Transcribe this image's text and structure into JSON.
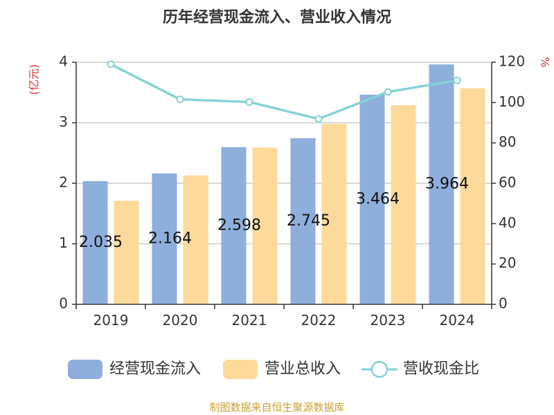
{
  "chart_data": {
    "type": "bar",
    "title": "历年经营现金流入、营业收入情况",
    "categories": [
      "2019",
      "2020",
      "2021",
      "2022",
      "2023",
      "2024"
    ],
    "series": [
      {
        "name": "经营现金流入",
        "kind": "bar",
        "axis": "left",
        "color": "#8eaedc",
        "values": [
          2.035,
          2.164,
          2.598,
          2.745,
          3.464,
          3.964
        ],
        "labels": [
          "2.035",
          "2.164",
          "2.598",
          "2.745",
          "3.464",
          "3.964"
        ]
      },
      {
        "name": "营业总收入",
        "kind": "bar",
        "axis": "left",
        "color": "#fdd99a",
        "values": [
          1.71,
          2.13,
          2.59,
          2.98,
          3.29,
          3.57
        ]
      },
      {
        "name": "营收现金比",
        "kind": "line",
        "axis": "right",
        "color": "#86d2d6",
        "values": [
          119.0,
          101.6,
          100.3,
          91.9,
          105.3,
          111.0
        ]
      }
    ],
    "y_left": {
      "label": "(亿元)",
      "min": 0,
      "max": 4,
      "ticks": [
        0,
        1,
        2,
        3,
        4
      ]
    },
    "y_right": {
      "label": "%",
      "min": 0,
      "max": 120,
      "ticks": [
        0,
        20,
        40,
        60,
        80,
        100,
        120
      ]
    },
    "grid": true,
    "legend_position": "bottom"
  },
  "source_note": "制图数据来自恒生聚源数据库"
}
